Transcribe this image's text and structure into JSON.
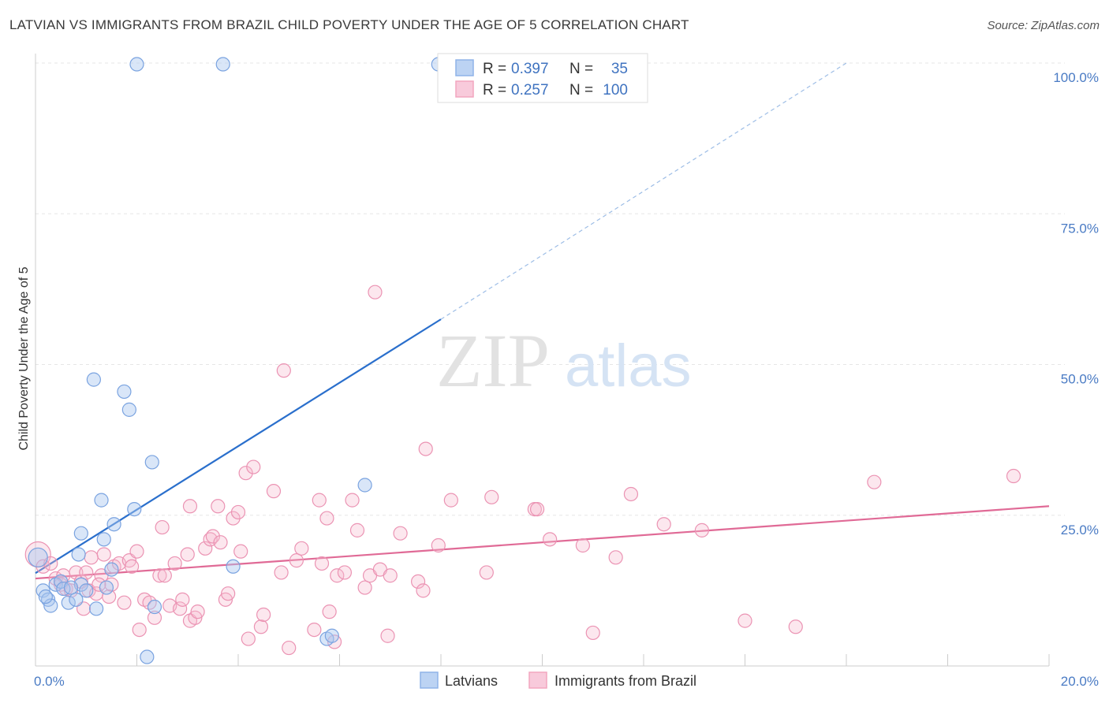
{
  "title": "LATVIAN VS IMMIGRANTS FROM BRAZIL CHILD POVERTY UNDER THE AGE OF 5 CORRELATION CHART",
  "source": "Source: ZipAtlas.com",
  "watermark": {
    "zip": "ZIP",
    "atlas": "atlas"
  },
  "colors": {
    "blue": "#8fb3e8",
    "blue_line": "#2a6fcc",
    "pink": "#f2a6bf",
    "pink_line": "#e06a96",
    "axis_text": "#4a7bc4"
  },
  "legend": {
    "r_label": "R =",
    "n_label": "N =",
    "rows": [
      {
        "r": "0.397",
        "n": "35"
      },
      {
        "r": "0.257",
        "n": "100"
      }
    ]
  },
  "chart_data": {
    "type": "scatter",
    "xlabel": "",
    "ylabel": "Child Poverty Under the Age of 5",
    "xlim": [
      0,
      20
    ],
    "ylim": [
      0,
      100
    ],
    "x_tick_labels": [
      "0.0%",
      "20.0%"
    ],
    "y_tick_labels": [
      "25.0%",
      "50.0%",
      "75.0%",
      "100.0%"
    ],
    "y_ticks": [
      25,
      50,
      75,
      100
    ],
    "legend_position": "top-center",
    "grid": true,
    "series": [
      {
        "name": "Latvians",
        "color": "#8fb3e8",
        "trend": {
          "x0": 0,
          "y0": 15.4,
          "x1": 8.0,
          "y1": 57.5,
          "dash_to_x": 16.0,
          "dash_to_y": 100
        },
        "points": [
          [
            0.05,
            18.0
          ],
          [
            0.15,
            12.5
          ],
          [
            0.25,
            11.0
          ],
          [
            0.3,
            10.0
          ],
          [
            0.4,
            13.5
          ],
          [
            0.5,
            14.0
          ],
          [
            0.55,
            12.8
          ],
          [
            0.65,
            10.5
          ],
          [
            0.8,
            11.0
          ],
          [
            0.9,
            13.5
          ],
          [
            0.7,
            13.0
          ],
          [
            0.85,
            18.5
          ],
          [
            0.9,
            22.0
          ],
          [
            1.0,
            12.5
          ],
          [
            1.15,
            47.5
          ],
          [
            1.2,
            9.5
          ],
          [
            1.3,
            27.5
          ],
          [
            1.35,
            21.0
          ],
          [
            1.4,
            13.0
          ],
          [
            1.5,
            16.0
          ],
          [
            1.55,
            23.5
          ],
          [
            1.75,
            45.5
          ],
          [
            1.85,
            42.5
          ],
          [
            1.95,
            26.0
          ],
          [
            2.0,
            99.8
          ],
          [
            2.2,
            1.5
          ],
          [
            2.3,
            33.8
          ],
          [
            2.35,
            9.8
          ],
          [
            3.7,
            99.8
          ],
          [
            3.9,
            16.5
          ],
          [
            5.75,
            4.5
          ],
          [
            5.85,
            5.0
          ],
          [
            6.5,
            30.0
          ],
          [
            7.95,
            99.8
          ],
          [
            0.2,
            11.5
          ]
        ]
      },
      {
        "name": "Immigrants from Brazil",
        "color": "#f2a6bf",
        "trend": {
          "x0": 0,
          "y0": 14.5,
          "x1": 20,
          "y1": 26.5
        },
        "points": [
          [
            0.05,
            18.5
          ],
          [
            0.15,
            16.5
          ],
          [
            0.3,
            17.0
          ],
          [
            0.4,
            14.5
          ],
          [
            0.5,
            13.5
          ],
          [
            0.6,
            12.8
          ],
          [
            0.7,
            12.5
          ],
          [
            0.8,
            15.5
          ],
          [
            0.9,
            14.0
          ],
          [
            0.95,
            9.5
          ],
          [
            1.0,
            15.5
          ],
          [
            1.05,
            12.5
          ],
          [
            1.2,
            12.0
          ],
          [
            1.3,
            15.0
          ],
          [
            1.35,
            18.5
          ],
          [
            1.45,
            11.5
          ],
          [
            1.5,
            13.5
          ],
          [
            1.55,
            16.5
          ],
          [
            1.65,
            17.0
          ],
          [
            1.75,
            10.5
          ],
          [
            1.85,
            17.5
          ],
          [
            1.9,
            16.5
          ],
          [
            2.0,
            19.0
          ],
          [
            2.05,
            6.0
          ],
          [
            2.15,
            11.0
          ],
          [
            2.25,
            10.5
          ],
          [
            2.35,
            8.0
          ],
          [
            2.45,
            15.0
          ],
          [
            2.5,
            23.0
          ],
          [
            2.55,
            15.0
          ],
          [
            2.65,
            10.0
          ],
          [
            2.75,
            17.0
          ],
          [
            2.85,
            9.5
          ],
          [
            2.9,
            11.0
          ],
          [
            3.0,
            18.5
          ],
          [
            3.05,
            26.5
          ],
          [
            3.05,
            7.5
          ],
          [
            3.15,
            8.0
          ],
          [
            3.2,
            9.0
          ],
          [
            3.35,
            19.5
          ],
          [
            3.45,
            21.0
          ],
          [
            3.5,
            21.5
          ],
          [
            3.6,
            26.5
          ],
          [
            3.65,
            20.5
          ],
          [
            3.75,
            11.0
          ],
          [
            3.8,
            12.0
          ],
          [
            3.9,
            24.5
          ],
          [
            4.0,
            25.5
          ],
          [
            4.05,
            19.0
          ],
          [
            4.15,
            32.0
          ],
          [
            4.2,
            4.5
          ],
          [
            4.3,
            33.0
          ],
          [
            4.45,
            6.5
          ],
          [
            4.5,
            8.5
          ],
          [
            4.7,
            29.0
          ],
          [
            4.85,
            15.5
          ],
          [
            4.9,
            49.0
          ],
          [
            5.0,
            3.0
          ],
          [
            5.15,
            17.5
          ],
          [
            5.25,
            19.5
          ],
          [
            5.5,
            6.0
          ],
          [
            5.6,
            27.5
          ],
          [
            5.65,
            17.0
          ],
          [
            5.75,
            24.5
          ],
          [
            5.8,
            9.0
          ],
          [
            5.9,
            4.0
          ],
          [
            5.95,
            15.0
          ],
          [
            6.1,
            15.5
          ],
          [
            6.25,
            27.5
          ],
          [
            6.35,
            22.5
          ],
          [
            6.5,
            13.0
          ],
          [
            6.6,
            15.0
          ],
          [
            6.7,
            62.0
          ],
          [
            6.8,
            16.0
          ],
          [
            6.95,
            5.0
          ],
          [
            7.0,
            15.0
          ],
          [
            7.2,
            22.0
          ],
          [
            7.55,
            14.0
          ],
          [
            7.65,
            12.5
          ],
          [
            7.7,
            36.0
          ],
          [
            7.95,
            20.0
          ],
          [
            8.2,
            27.5
          ],
          [
            8.9,
            15.5
          ],
          [
            9.0,
            28.0
          ],
          [
            9.85,
            26.0
          ],
          [
            9.9,
            26.0
          ],
          [
            10.15,
            21.0
          ],
          [
            10.8,
            20.0
          ],
          [
            11.0,
            5.5
          ],
          [
            11.45,
            18.0
          ],
          [
            11.75,
            28.5
          ],
          [
            12.4,
            23.5
          ],
          [
            13.15,
            22.5
          ],
          [
            14.0,
            7.5
          ],
          [
            15.0,
            6.5
          ],
          [
            16.55,
            30.5
          ],
          [
            19.3,
            31.5
          ],
          [
            1.1,
            18.0
          ],
          [
            1.25,
            13.5
          ],
          [
            0.55,
            15.0
          ]
        ]
      }
    ]
  }
}
